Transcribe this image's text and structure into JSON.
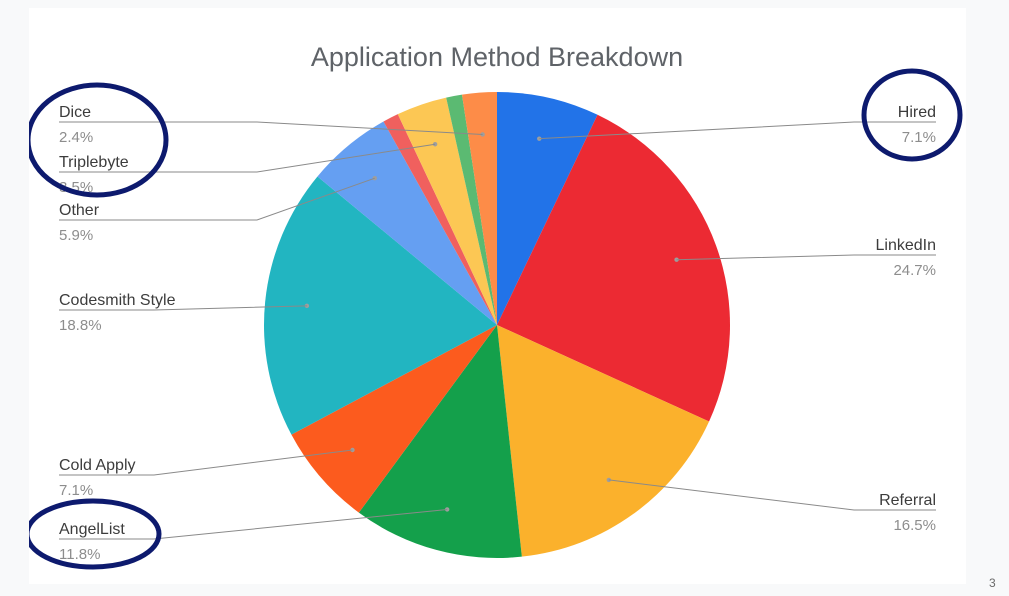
{
  "page_number": "3",
  "chart_data": {
    "type": "pie",
    "title": "Application Method Breakdown",
    "slices": [
      {
        "label": "Hired",
        "value": 7.1,
        "display": "7.1%",
        "color": "#2273e8",
        "circled": true
      },
      {
        "label": "LinkedIn",
        "value": 24.7,
        "display": "24.7%",
        "color": "#ec2a33",
        "circled": false
      },
      {
        "label": "Referral",
        "value": 16.5,
        "display": "16.5%",
        "color": "#fbb12c",
        "circled": false
      },
      {
        "label": "AngelList",
        "value": 11.8,
        "display": "11.8%",
        "color": "#14a04b",
        "circled": true
      },
      {
        "label": "Cold Apply",
        "value": 7.1,
        "display": "7.1%",
        "color": "#fc5b1e",
        "circled": false
      },
      {
        "label": "Codesmith Style",
        "value": 18.8,
        "display": "18.8%",
        "color": "#22b5c1",
        "circled": false
      },
      {
        "label": "Other",
        "value": 5.9,
        "display": "5.9%",
        "color": "#659ff2",
        "circled": false
      },
      {
        "label": "",
        "value": 1.1,
        "display": "",
        "color": "#f0605e",
        "circled": false
      },
      {
        "label": "Triplebyte",
        "value": 3.5,
        "display": "3.5%",
        "color": "#fcc754",
        "circled": true
      },
      {
        "label": "",
        "value": 1.1,
        "display": "",
        "color": "#5bba72",
        "circled": false
      },
      {
        "label": "Dice",
        "value": 2.4,
        "display": "2.4%",
        "color": "#fd8c48",
        "circled": true
      }
    ],
    "legend": "none",
    "label_position": "outside with leader lines"
  }
}
